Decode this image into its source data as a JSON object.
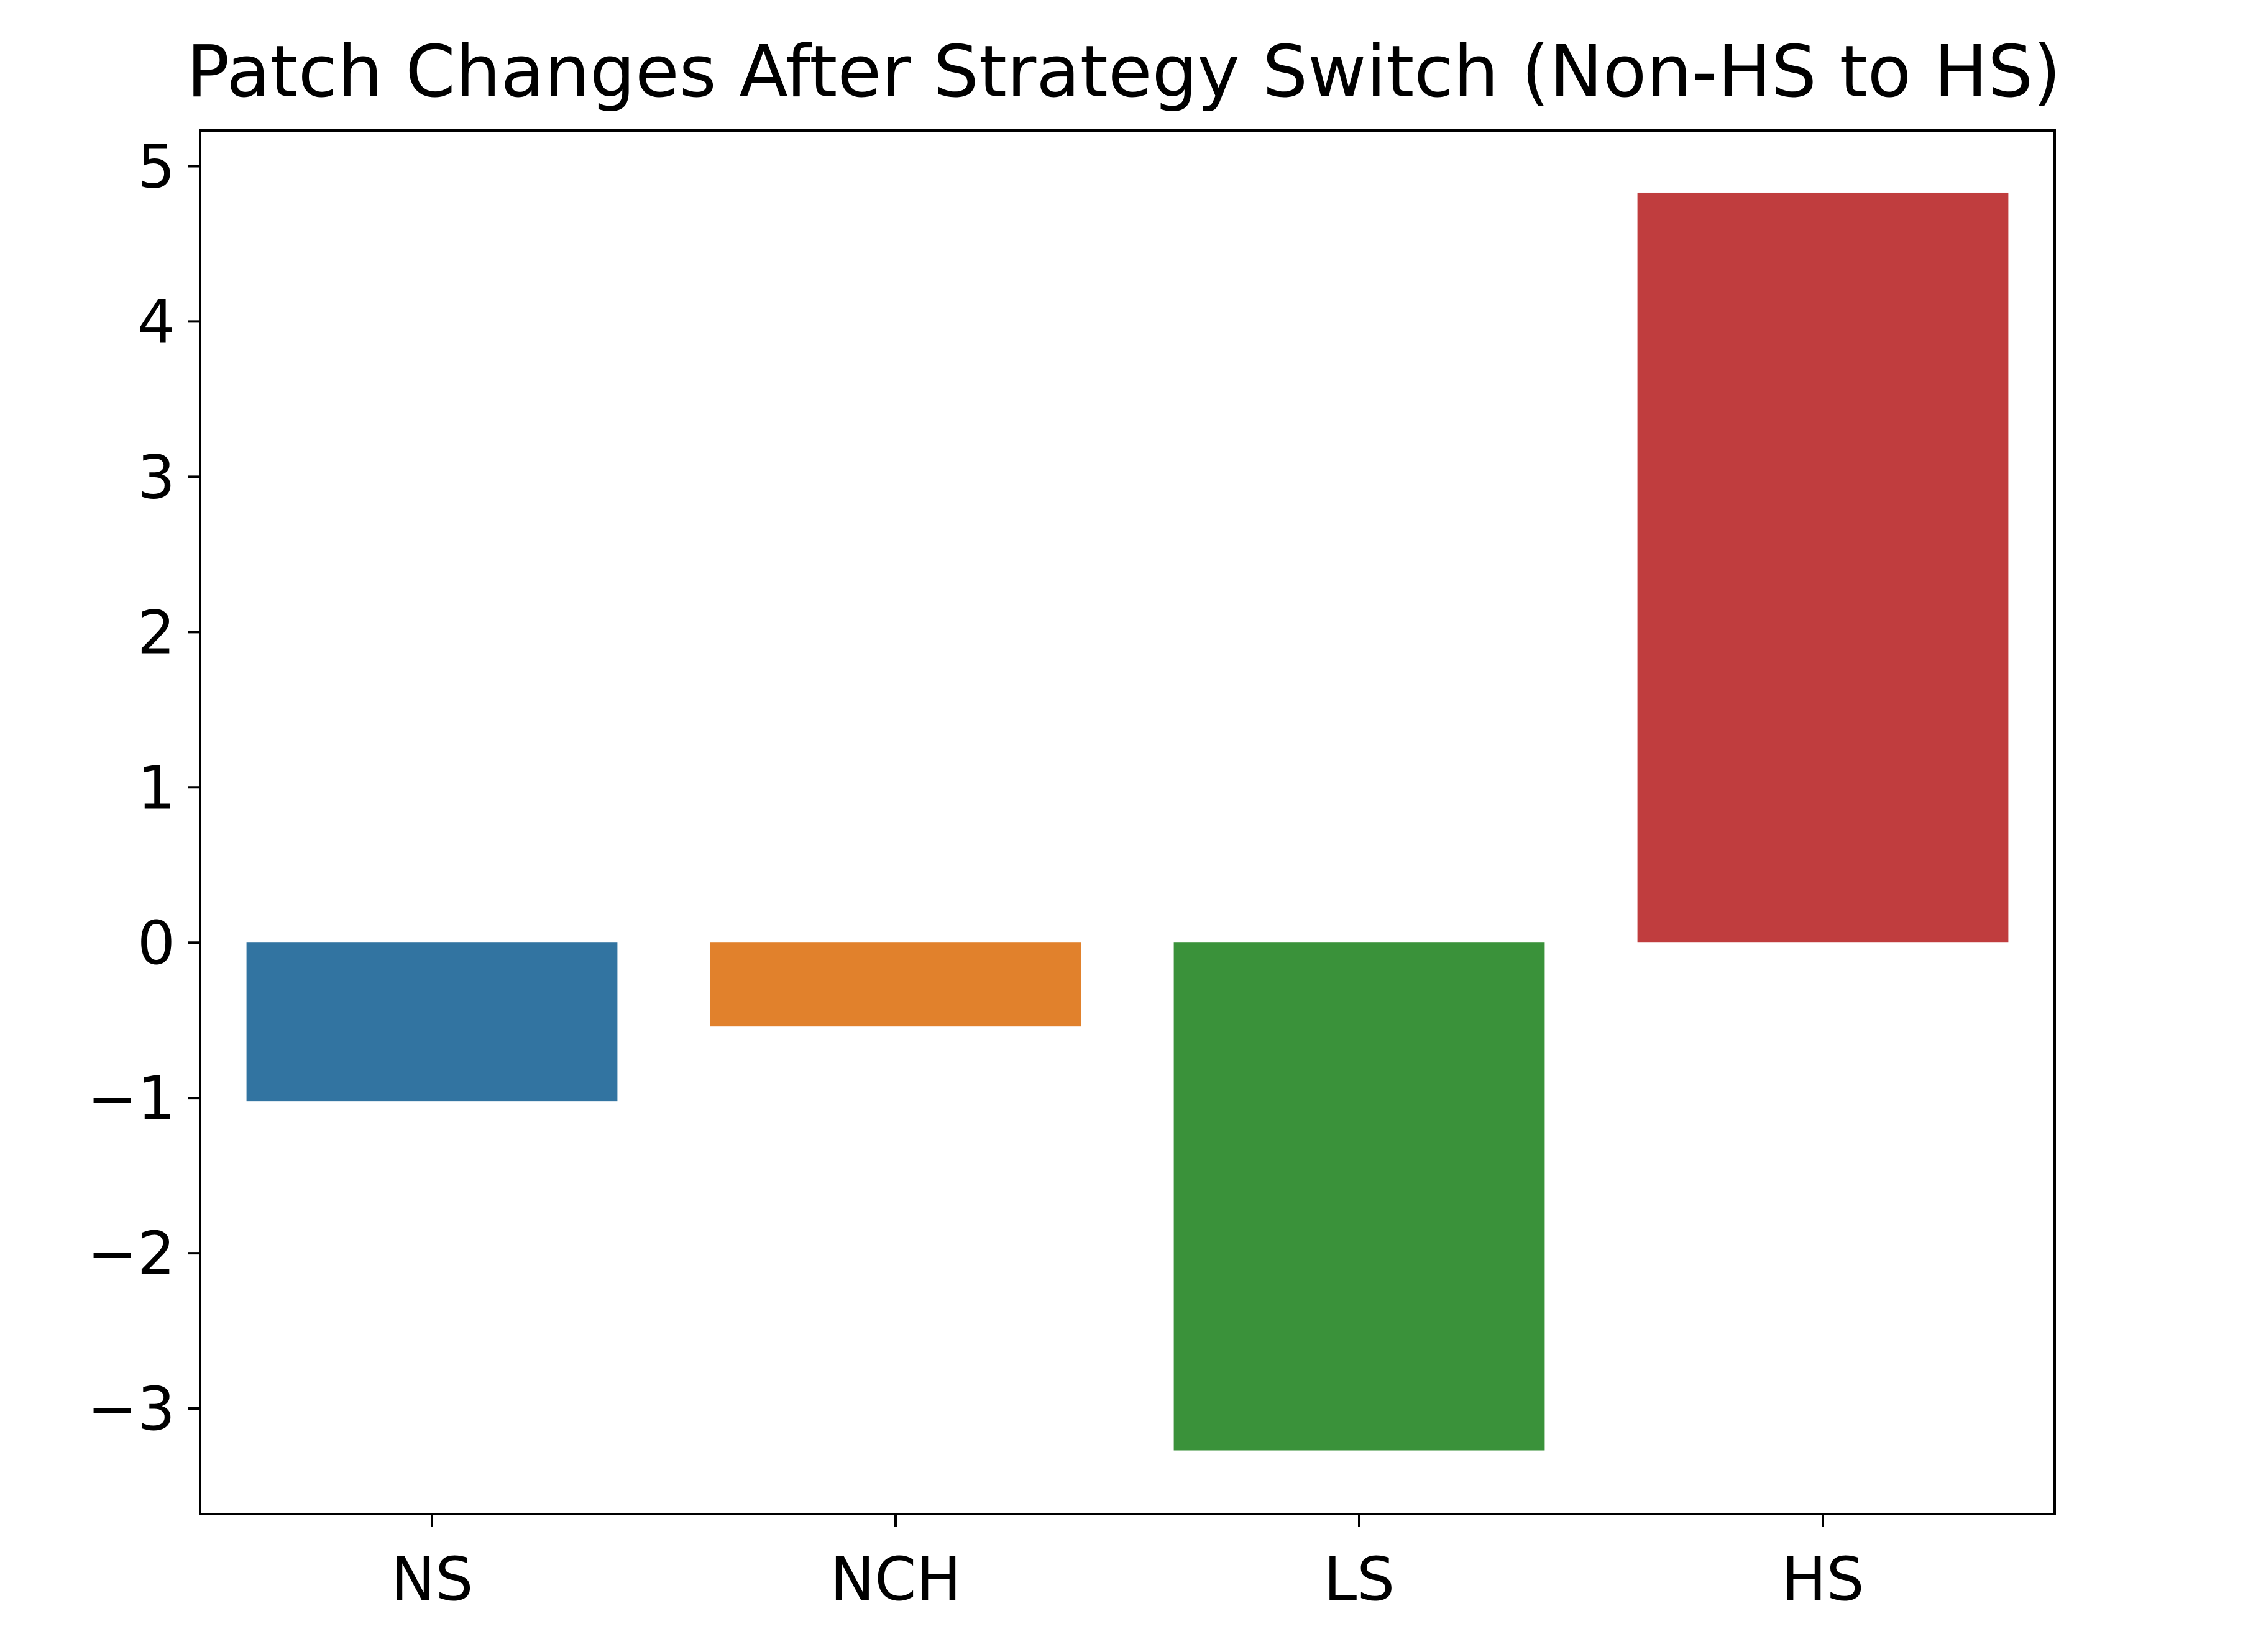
{
  "chart_data": {
    "type": "bar",
    "title": "Patch Changes After Strategy Switch (Non-HS to HS)",
    "xlabel": "",
    "ylabel": "",
    "categories": [
      "NS",
      "NCH",
      "LS",
      "HS"
    ],
    "values": [
      -1.02,
      -0.54,
      -3.27,
      4.83
    ],
    "colors": [
      "#3274a1",
      "#e1812c",
      "#3a923a",
      "#c03d3e"
    ],
    "ylim": [
      -3.68,
      5.23
    ],
    "yticks": [
      -3,
      -2,
      -1,
      0,
      1,
      2,
      3,
      4,
      5
    ],
    "ytick_labels": [
      "−3",
      "−2",
      "−1",
      "0",
      "1",
      "2",
      "3",
      "4",
      "5"
    ],
    "grid": false,
    "legend": false
  }
}
